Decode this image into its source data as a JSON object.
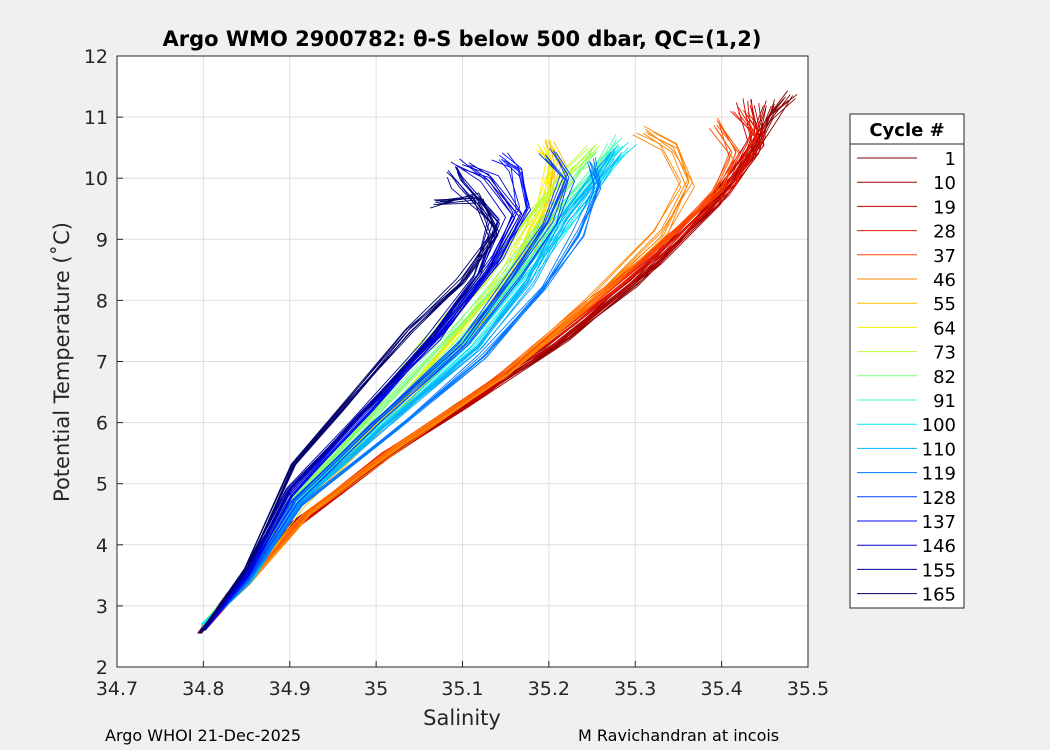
{
  "footer_left": "Argo WHOI 21-Dec-2025",
  "footer_right": "M Ravichandran at incois",
  "chart_data": {
    "type": "line",
    "title": "Argo WMO 2900782: θ-S below 500 dbar,  QC=(1,2)",
    "xlabel": "Salinity",
    "ylabel": "Potential Temperature (˚C)",
    "xlim": [
      34.7,
      35.5
    ],
    "ylim": [
      2,
      12
    ],
    "xticks": [
      34.7,
      34.8,
      34.9,
      35.0,
      35.1,
      35.2,
      35.3,
      35.4,
      35.5
    ],
    "xtick_labels": [
      "34.7",
      "34.8",
      "34.9",
      "35",
      "35.1",
      "35.2",
      "35.3",
      "35.4",
      "35.5"
    ],
    "yticks": [
      2,
      3,
      4,
      5,
      6,
      7,
      8,
      9,
      10,
      11,
      12
    ],
    "ytick_labels": [
      "2",
      "3",
      "4",
      "5",
      "6",
      "7",
      "8",
      "9",
      "10",
      "11",
      "12"
    ],
    "grid": true,
    "legend": {
      "title": "Cycle #",
      "position": "outside-right",
      "entries": [
        {
          "name": "1",
          "color": "#7f0000"
        },
        {
          "name": "10",
          "color": "#9c0000"
        },
        {
          "name": "19",
          "color": "#c80000"
        },
        {
          "name": "28",
          "color": "#ef1a00"
        },
        {
          "name": "37",
          "color": "#ff4f00"
        },
        {
          "name": "46",
          "color": "#ff8400"
        },
        {
          "name": "55",
          "color": "#ffbf00"
        },
        {
          "name": "64",
          "color": "#f4f000"
        },
        {
          "name": "73",
          "color": "#b8ff3f"
        },
        {
          "name": "82",
          "color": "#7dff7a"
        },
        {
          "name": "91",
          "color": "#42ffb5"
        },
        {
          "name": "100",
          "color": "#08e8f0"
        },
        {
          "name": "110",
          "color": "#00b0ff"
        },
        {
          "name": "119",
          "color": "#0078ff"
        },
        {
          "name": "128",
          "color": "#0040ff"
        },
        {
          "name": "137",
          "color": "#0008ff"
        },
        {
          "name": "146",
          "color": "#0000cf"
        },
        {
          "name": "155",
          "color": "#00009c"
        },
        {
          "name": "165",
          "color": "#00006a"
        }
      ]
    },
    "profile_groups": [
      {
        "name": "1",
        "color": "#7f0000",
        "points": [
          [
            34.795,
            2.55
          ],
          [
            34.83,
            3.2
          ],
          [
            34.9,
            4.3
          ],
          [
            35.0,
            5.35
          ],
          [
            35.1,
            6.3
          ],
          [
            35.2,
            7.2
          ],
          [
            35.3,
            8.3
          ],
          [
            35.38,
            9.4
          ],
          [
            35.43,
            10.3
          ],
          [
            35.46,
            11.0
          ],
          [
            35.48,
            11.35
          ]
        ]
      },
      {
        "name": "10",
        "color": "#9c0000",
        "points": [
          [
            34.797,
            2.58
          ],
          [
            34.835,
            3.2
          ],
          [
            34.905,
            4.3
          ],
          [
            35.005,
            5.4
          ],
          [
            35.1,
            6.25
          ],
          [
            35.22,
            7.4
          ],
          [
            35.32,
            8.6
          ],
          [
            35.39,
            9.6
          ],
          [
            35.43,
            10.4
          ],
          [
            35.45,
            11.2
          ]
        ]
      },
      {
        "name": "19",
        "color": "#c80000",
        "points": [
          [
            34.8,
            2.6
          ],
          [
            34.84,
            3.25
          ],
          [
            34.91,
            4.35
          ],
          [
            35.01,
            5.45
          ],
          [
            35.12,
            6.45
          ],
          [
            35.23,
            7.6
          ],
          [
            35.33,
            8.8
          ],
          [
            35.4,
            9.8
          ],
          [
            35.44,
            10.6
          ],
          [
            35.43,
            11.3
          ]
        ]
      },
      {
        "name": "28",
        "color": "#ef1a00",
        "points": [
          [
            34.8,
            2.62
          ],
          [
            34.84,
            3.28
          ],
          [
            34.91,
            4.4
          ],
          [
            35.01,
            5.5
          ],
          [
            35.13,
            6.6
          ],
          [
            35.24,
            7.8
          ],
          [
            35.34,
            9.0
          ],
          [
            35.41,
            9.9
          ],
          [
            35.44,
            10.7
          ],
          [
            35.42,
            11.1
          ]
        ]
      },
      {
        "name": "37",
        "color": "#ff4f00",
        "points": [
          [
            34.8,
            2.65
          ],
          [
            34.845,
            3.3
          ],
          [
            34.915,
            4.45
          ],
          [
            35.02,
            5.55
          ],
          [
            35.14,
            6.7
          ],
          [
            35.25,
            7.95
          ],
          [
            35.35,
            9.1
          ],
          [
            35.4,
            9.8
          ],
          [
            35.42,
            10.4
          ],
          [
            35.4,
            10.9
          ]
        ]
      },
      {
        "name": "46",
        "color": "#ff8400",
        "points": [
          [
            34.8,
            2.68
          ],
          [
            34.85,
            3.35
          ],
          [
            34.92,
            4.5
          ],
          [
            35.03,
            5.65
          ],
          [
            35.15,
            6.8
          ],
          [
            35.25,
            8.0
          ],
          [
            35.33,
            9.1
          ],
          [
            35.36,
            9.9
          ],
          [
            35.34,
            10.5
          ],
          [
            35.31,
            10.75
          ]
        ]
      },
      {
        "name": "55",
        "color": "#ffbf00",
        "points": [
          [
            34.8,
            2.7
          ],
          [
            34.85,
            3.4
          ],
          [
            34.91,
            4.6
          ],
          [
            35.0,
            5.9
          ],
          [
            35.1,
            7.3
          ],
          [
            35.17,
            8.6
          ],
          [
            35.2,
            9.5
          ],
          [
            35.21,
            10.2
          ],
          [
            35.2,
            10.6
          ]
        ]
      },
      {
        "name": "64",
        "color": "#f4f000",
        "points": [
          [
            34.8,
            2.7
          ],
          [
            34.85,
            3.42
          ],
          [
            34.91,
            4.65
          ],
          [
            35.0,
            6.0
          ],
          [
            35.08,
            7.3
          ],
          [
            35.15,
            8.5
          ],
          [
            35.19,
            9.6
          ],
          [
            35.2,
            10.3
          ],
          [
            35.19,
            10.55
          ]
        ]
      },
      {
        "name": "73",
        "color": "#b8ff3f",
        "points": [
          [
            34.8,
            2.7
          ],
          [
            34.85,
            3.45
          ],
          [
            34.9,
            4.7
          ],
          [
            34.99,
            6.1
          ],
          [
            35.05,
            7.2
          ],
          [
            35.12,
            8.3
          ],
          [
            35.17,
            9.3
          ],
          [
            35.22,
            10.1
          ],
          [
            35.25,
            10.5
          ]
        ]
      },
      {
        "name": "82",
        "color": "#7dff7a",
        "points": [
          [
            34.8,
            2.7
          ],
          [
            34.85,
            3.45
          ],
          [
            34.9,
            4.7
          ],
          [
            34.99,
            6.0
          ],
          [
            35.08,
            7.3
          ],
          [
            35.15,
            8.4
          ],
          [
            35.2,
            9.4
          ],
          [
            35.24,
            10.1
          ],
          [
            35.26,
            10.4
          ]
        ]
      },
      {
        "name": "91",
        "color": "#42ffb5",
        "points": [
          [
            34.8,
            2.7
          ],
          [
            34.855,
            3.45
          ],
          [
            34.91,
            4.7
          ],
          [
            35.0,
            6.0
          ],
          [
            35.1,
            7.3
          ],
          [
            35.17,
            8.5
          ],
          [
            35.22,
            9.5
          ],
          [
            35.26,
            10.2
          ],
          [
            35.28,
            10.6
          ]
        ]
      },
      {
        "name": "100",
        "color": "#08e8f0",
        "points": [
          [
            34.8,
            2.7
          ],
          [
            34.855,
            3.45
          ],
          [
            34.91,
            4.7
          ],
          [
            35.01,
            6.0
          ],
          [
            35.11,
            7.3
          ],
          [
            35.18,
            8.5
          ],
          [
            35.23,
            9.4
          ],
          [
            35.27,
            10.2
          ],
          [
            35.29,
            10.5
          ]
        ]
      },
      {
        "name": "110",
        "color": "#00b0ff",
        "points": [
          [
            34.8,
            2.65
          ],
          [
            34.855,
            3.4
          ],
          [
            34.91,
            4.65
          ],
          [
            35.01,
            5.9
          ],
          [
            35.12,
            7.2
          ],
          [
            35.18,
            8.3
          ],
          [
            35.22,
            9.3
          ],
          [
            35.26,
            10.0
          ],
          [
            35.28,
            10.4
          ]
        ]
      },
      {
        "name": "119",
        "color": "#0078ff",
        "points": [
          [
            34.8,
            2.65
          ],
          [
            34.85,
            3.4
          ],
          [
            34.91,
            4.65
          ],
          [
            35.02,
            5.9
          ],
          [
            35.12,
            7.1
          ],
          [
            35.19,
            8.2
          ],
          [
            35.23,
            9.1
          ],
          [
            35.25,
            9.9
          ],
          [
            35.24,
            10.3
          ]
        ]
      },
      {
        "name": "128",
        "color": "#0040ff",
        "points": [
          [
            34.8,
            2.6
          ],
          [
            34.85,
            3.45
          ],
          [
            34.905,
            4.7
          ],
          [
            35.0,
            6.0
          ],
          [
            35.1,
            7.3
          ],
          [
            35.16,
            8.4
          ],
          [
            35.2,
            9.3
          ],
          [
            35.22,
            10.0
          ],
          [
            35.2,
            10.4
          ]
        ]
      },
      {
        "name": "137",
        "color": "#0008ff",
        "points": [
          [
            34.8,
            2.6
          ],
          [
            34.85,
            3.5
          ],
          [
            34.9,
            4.8
          ],
          [
            34.99,
            6.2
          ],
          [
            35.08,
            7.6
          ],
          [
            35.14,
            8.7
          ],
          [
            35.17,
            9.5
          ],
          [
            35.16,
            10.1
          ],
          [
            35.14,
            10.3
          ]
        ]
      },
      {
        "name": "146",
        "color": "#0000cf",
        "points": [
          [
            34.8,
            2.6
          ],
          [
            34.85,
            3.55
          ],
          [
            34.9,
            4.85
          ],
          [
            34.98,
            6.1
          ],
          [
            35.07,
            7.4
          ],
          [
            35.13,
            8.5
          ],
          [
            35.16,
            9.4
          ],
          [
            35.13,
            10.0
          ],
          [
            35.1,
            10.2
          ]
        ]
      },
      {
        "name": "155",
        "color": "#00009c",
        "points": [
          [
            34.8,
            2.6
          ],
          [
            34.85,
            3.6
          ],
          [
            34.9,
            4.9
          ],
          [
            34.975,
            6.0
          ],
          [
            35.06,
            7.3
          ],
          [
            35.12,
            8.4
          ],
          [
            35.14,
            9.3
          ],
          [
            35.1,
            9.9
          ],
          [
            35.09,
            10.1
          ]
        ]
      },
      {
        "name": "165",
        "color": "#00006a",
        "points": [
          [
            34.797,
            2.55
          ],
          [
            34.85,
            3.6
          ],
          [
            34.905,
            5.3
          ],
          [
            34.96,
            6.2
          ],
          [
            35.04,
            7.5
          ],
          [
            35.1,
            8.3
          ],
          [
            35.14,
            9.1
          ],
          [
            35.12,
            9.7
          ],
          [
            35.07,
            9.6
          ]
        ]
      }
    ]
  }
}
